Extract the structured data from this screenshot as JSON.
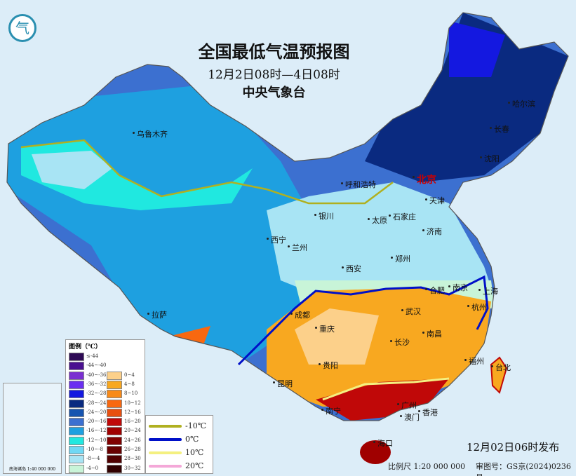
{
  "title": "全国最低气温预报图",
  "period": "12月2日08时—4日08时",
  "issuer": "中央气象台",
  "issue_time": "12月02日06时发布",
  "scale": "比例尺 1:20 000 000",
  "review_no": "审图号：GS京(2024)0236号",
  "legend": {
    "heading": "图例（℃）",
    "cold": [
      {
        "label": "≤-44",
        "color": "#2e0a55"
      },
      {
        "label": "-44~-40",
        "color": "#4a1090"
      },
      {
        "label": "-40~-36",
        "color": "#7a2fd0"
      },
      {
        "label": "-36~-32",
        "color": "#6a2ef0"
      },
      {
        "label": "-32~-28",
        "color": "#1418e0"
      },
      {
        "label": "-28~-24",
        "color": "#0a2a80"
      },
      {
        "label": "-24~-20",
        "color": "#1654b0"
      },
      {
        "label": "-20~-16",
        "color": "#3c70d0"
      },
      {
        "label": "-16~-12",
        "color": "#1ea0e0"
      },
      {
        "label": "-12~-10",
        "color": "#20e8e0"
      },
      {
        "label": "-10~-8",
        "color": "#70d8f4"
      },
      {
        "label": "-8~-4",
        "color": "#a8e4f4"
      },
      {
        "label": "-4~0",
        "color": "#c8f4d8"
      }
    ],
    "warm": [
      {
        "label": "0~4",
        "color": "#fcd08a"
      },
      {
        "label": "4~8",
        "color": "#f8a820"
      },
      {
        "label": "8~10",
        "color": "#f88a18"
      },
      {
        "label": "10~12",
        "color": "#f86810"
      },
      {
        "label": "12~16",
        "color": "#e85010"
      },
      {
        "label": "16~20",
        "color": "#c00808"
      },
      {
        "label": "20~24",
        "color": "#a00000"
      },
      {
        "label": "24~26",
        "color": "#800000"
      },
      {
        "label": "26~28",
        "color": "#680000"
      },
      {
        "label": "28~30",
        "color": "#500000"
      },
      {
        "label": "30~32",
        "color": "#300000"
      }
    ],
    "isotherms": [
      {
        "label": "-10℃",
        "color": "#b0b020"
      },
      {
        "label": "0℃",
        "color": "#0010c8"
      },
      {
        "label": "10℃",
        "color": "#f4f080"
      },
      {
        "label": "20℃",
        "color": "#f4a8d8"
      }
    ]
  },
  "cities": [
    {
      "name": "乌鲁木齐",
      "id": "urumqi"
    },
    {
      "name": "哈尔滨",
      "id": "harbin"
    },
    {
      "name": "长春",
      "id": "changchun"
    },
    {
      "name": "沈阳",
      "id": "shenyang"
    },
    {
      "name": "北京",
      "id": "beijing"
    },
    {
      "name": "天津",
      "id": "tianjin"
    },
    {
      "name": "呼和浩特",
      "id": "hohhot"
    },
    {
      "name": "石家庄",
      "id": "shijiazhuang"
    },
    {
      "name": "太原",
      "id": "taiyuan"
    },
    {
      "name": "银川",
      "id": "yinchuan"
    },
    {
      "name": "济南",
      "id": "jinan"
    },
    {
      "name": "西宁",
      "id": "xining"
    },
    {
      "name": "兰州",
      "id": "lanzhou"
    },
    {
      "name": "西安",
      "id": "xian"
    },
    {
      "name": "郑州",
      "id": "zhengzhou"
    },
    {
      "name": "合肥",
      "id": "hefei"
    },
    {
      "name": "南京",
      "id": "nanjing"
    },
    {
      "name": "上海",
      "id": "shanghai"
    },
    {
      "name": "杭州",
      "id": "hangzhou"
    },
    {
      "name": "成都",
      "id": "chengdu"
    },
    {
      "name": "武汉",
      "id": "wuhan"
    },
    {
      "name": "拉萨",
      "id": "lhasa"
    },
    {
      "name": "重庆",
      "id": "chongqing"
    },
    {
      "name": "长沙",
      "id": "changsha"
    },
    {
      "name": "南昌",
      "id": "nanchang"
    },
    {
      "name": "福州",
      "id": "fuzhou"
    },
    {
      "name": "台北",
      "id": "taipei"
    },
    {
      "name": "贵阳",
      "id": "guiyang"
    },
    {
      "name": "昆明",
      "id": "kunming"
    },
    {
      "name": "南宁",
      "id": "nanning"
    },
    {
      "name": "广州",
      "id": "guangzhou"
    },
    {
      "name": "澳门",
      "id": "macau"
    },
    {
      "name": "香港",
      "id": "hongkong"
    },
    {
      "name": "海口",
      "id": "haikou"
    }
  ],
  "inset": {
    "label": "南海诸岛 1:40 000 000"
  }
}
